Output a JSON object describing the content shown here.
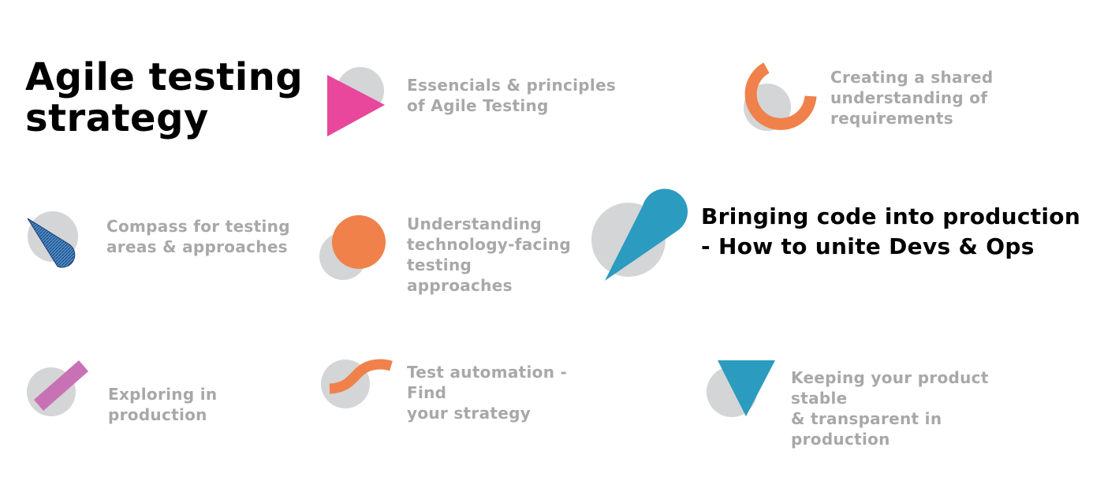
{
  "title": "Agile testing\nstrategy",
  "colors": {
    "inactive_text": "#a8a8a8",
    "active_text": "#000000",
    "circle_gray": "#d3d5d6",
    "magenta": "#e8479b",
    "orange": "#f0814b",
    "teal": "#2b9bbf",
    "navy_hatch": "#1e3a74",
    "pink_purple": "#c872b5"
  },
  "topics": [
    {
      "id": "essentials",
      "label": "Essencials & principles\nof Agile Testing",
      "icon": "play-triangle-icon",
      "active": false
    },
    {
      "id": "shared-understanding",
      "label": "Creating a shared\nunderstanding of\nrequirements",
      "icon": "ring-arc-icon",
      "active": false
    },
    {
      "id": "compass",
      "label": "Compass for testing\nareas & approaches",
      "icon": "compass-cone-icon",
      "active": false
    },
    {
      "id": "technology-facing",
      "label": "Understanding\ntechnology-facing\ntesting approaches",
      "icon": "orange-circle-icon",
      "active": false
    },
    {
      "id": "devs-ops",
      "label": "Bringing code into production\n- How to unite Devs & Ops",
      "icon": "teardrop-icon",
      "active": true
    },
    {
      "id": "exploring-production",
      "label": "Exploring in production",
      "icon": "diagonal-bar-icon",
      "active": false
    },
    {
      "id": "test-automation",
      "label": "Test automation - Find\nyour strategy",
      "icon": "wave-stroke-icon",
      "active": false
    },
    {
      "id": "stable-transparent",
      "label": "Keeping your product stable\n& transparent in production",
      "icon": "down-triangle-icon",
      "active": false
    }
  ]
}
